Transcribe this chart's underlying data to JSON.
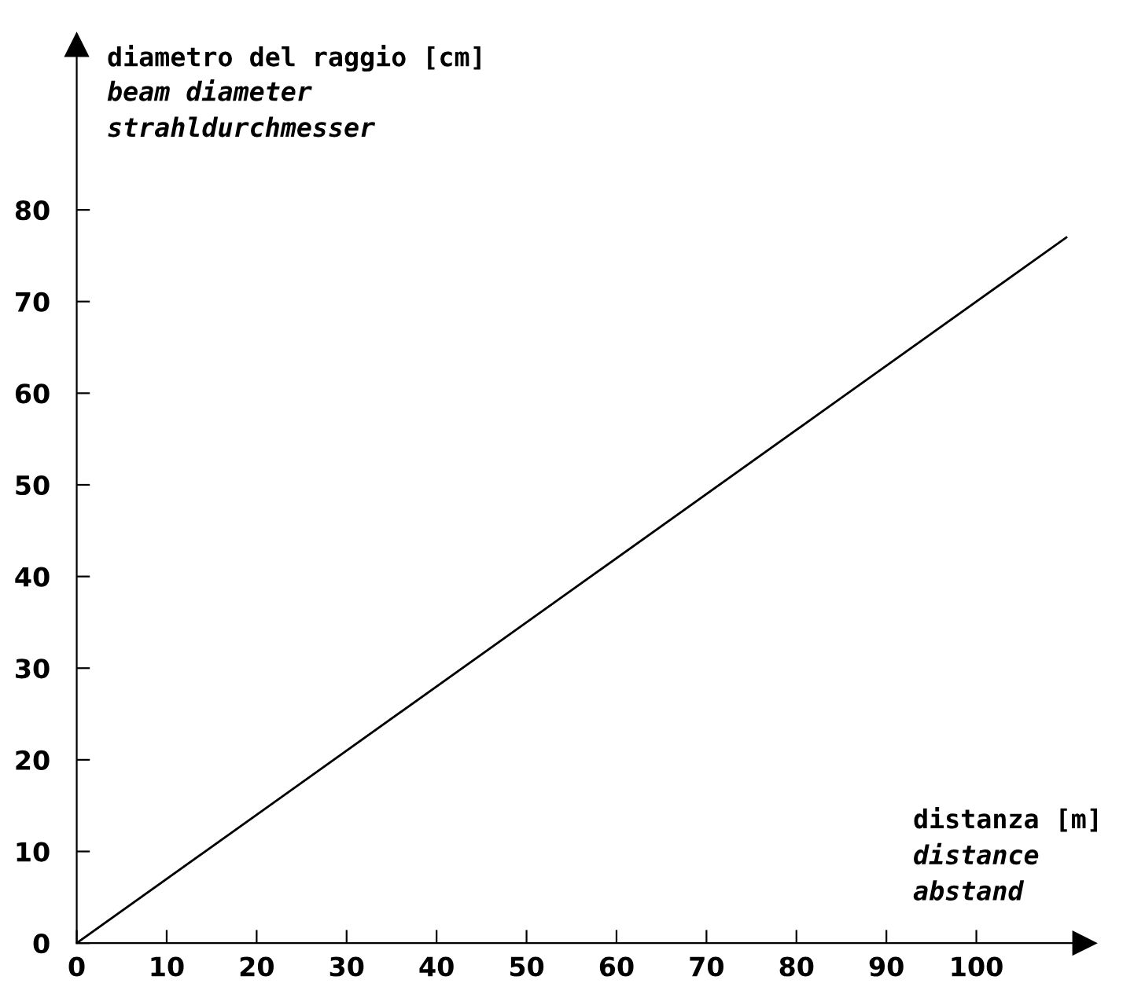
{
  "chart_data": {
    "type": "line",
    "xlabel": "distanza [m]\ndistance\nabstand",
    "ylabel": "diametro del raggio [cm]\nbeam diameter\nstrahldurchmesser",
    "x": [
      0,
      110
    ],
    "series": [
      {
        "color": "#000000",
        "values": [
          0,
          77
        ]
      }
    ],
    "xlim": [
      0,
      112
    ],
    "ylim": [
      0,
      98
    ],
    "xticks": [
      0,
      10,
      20,
      30,
      40,
      50,
      60,
      70,
      80,
      90,
      100
    ],
    "yticks": [
      0,
      10,
      20,
      30,
      40,
      50,
      60,
      70,
      80
    ],
    "grid": false,
    "legend": false,
    "marker": "none",
    "line_style": "solid"
  }
}
